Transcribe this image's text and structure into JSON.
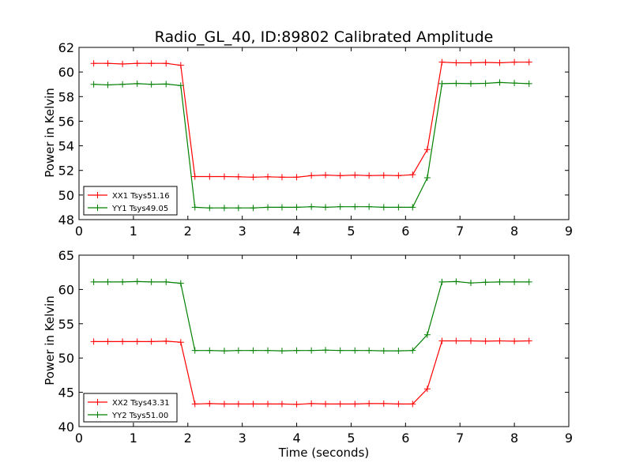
{
  "chart_data": [
    {
      "type": "line",
      "title": "Radio_GL_40, ID:89802 Calibrated Amplitude",
      "xlabel": "",
      "ylabel": "Power in Kelvin",
      "xlim": [
        0,
        9
      ],
      "ylim": [
        48,
        62
      ],
      "xticks": [
        "0",
        "1",
        "2",
        "3",
        "4",
        "5",
        "6",
        "7",
        "8",
        "9"
      ],
      "yticks": [
        "48",
        "50",
        "52",
        "54",
        "56",
        "58",
        "60",
        "62"
      ],
      "grid": false,
      "legend_position": "lower-left",
      "x": [
        0.27,
        0.53,
        0.8,
        1.07,
        1.33,
        1.6,
        1.87,
        2.13,
        2.4,
        2.67,
        2.93,
        3.2,
        3.47,
        3.73,
        4.0,
        4.27,
        4.53,
        4.8,
        5.07,
        5.33,
        5.6,
        5.87,
        6.13,
        6.4,
        6.67,
        6.93,
        7.2,
        7.47,
        7.73,
        8.0,
        8.27
      ],
      "series": [
        {
          "name": "XX1 Tsys51.16",
          "color": "#ff0000",
          "values": [
            60.7,
            60.7,
            60.65,
            60.7,
            60.7,
            60.7,
            60.55,
            51.5,
            51.5,
            51.5,
            51.48,
            51.45,
            51.48,
            51.45,
            51.45,
            51.58,
            51.62,
            51.58,
            51.62,
            51.58,
            51.6,
            51.58,
            51.65,
            53.7,
            60.8,
            60.75,
            60.75,
            60.78,
            60.75,
            60.8,
            60.8
          ]
        },
        {
          "name": "YY1 Tsys49.05",
          "color": "#008000",
          "values": [
            59.0,
            58.95,
            59.0,
            59.05,
            59.0,
            59.02,
            58.9,
            49.0,
            48.95,
            48.95,
            48.95,
            48.95,
            49.0,
            49.0,
            49.0,
            49.05,
            49.0,
            49.05,
            49.05,
            49.05,
            49.0,
            49.0,
            49.0,
            51.4,
            59.05,
            59.08,
            59.05,
            59.08,
            59.15,
            59.1,
            59.05
          ]
        }
      ]
    },
    {
      "type": "line",
      "title": "",
      "xlabel": "Time (seconds)",
      "ylabel": "Power in Kelvin",
      "xlim": [
        0,
        9
      ],
      "ylim": [
        40,
        65
      ],
      "xticks": [
        "0",
        "1",
        "2",
        "3",
        "4",
        "5",
        "6",
        "7",
        "8",
        "9"
      ],
      "yticks": [
        "40",
        "45",
        "50",
        "55",
        "60",
        "65"
      ],
      "grid": false,
      "legend_position": "lower-left",
      "x": [
        0.27,
        0.53,
        0.8,
        1.07,
        1.33,
        1.6,
        1.87,
        2.13,
        2.4,
        2.67,
        2.93,
        3.2,
        3.47,
        3.73,
        4.0,
        4.27,
        4.53,
        4.8,
        5.07,
        5.33,
        5.6,
        5.87,
        6.13,
        6.4,
        6.67,
        6.93,
        7.2,
        7.47,
        7.73,
        8.0,
        8.27
      ],
      "series": [
        {
          "name": "XX2 Tsys43.31",
          "color": "#ff0000",
          "values": [
            52.4,
            52.4,
            52.4,
            52.4,
            52.4,
            52.45,
            52.3,
            43.3,
            43.35,
            43.3,
            43.3,
            43.3,
            43.3,
            43.3,
            43.25,
            43.35,
            43.3,
            43.3,
            43.3,
            43.35,
            43.35,
            43.3,
            43.3,
            45.5,
            52.5,
            52.5,
            52.5,
            52.45,
            52.5,
            52.45,
            52.5
          ]
        },
        {
          "name": "YY2 Tsys51.00",
          "color": "#008000",
          "values": [
            61.1,
            61.1,
            61.1,
            61.15,
            61.1,
            61.1,
            60.9,
            51.1,
            51.1,
            51.05,
            51.1,
            51.1,
            51.1,
            51.05,
            51.1,
            51.1,
            51.15,
            51.1,
            51.1,
            51.1,
            51.05,
            51.05,
            51.1,
            53.4,
            61.1,
            61.15,
            60.95,
            61.05,
            61.1,
            61.1,
            61.1
          ]
        }
      ]
    }
  ]
}
